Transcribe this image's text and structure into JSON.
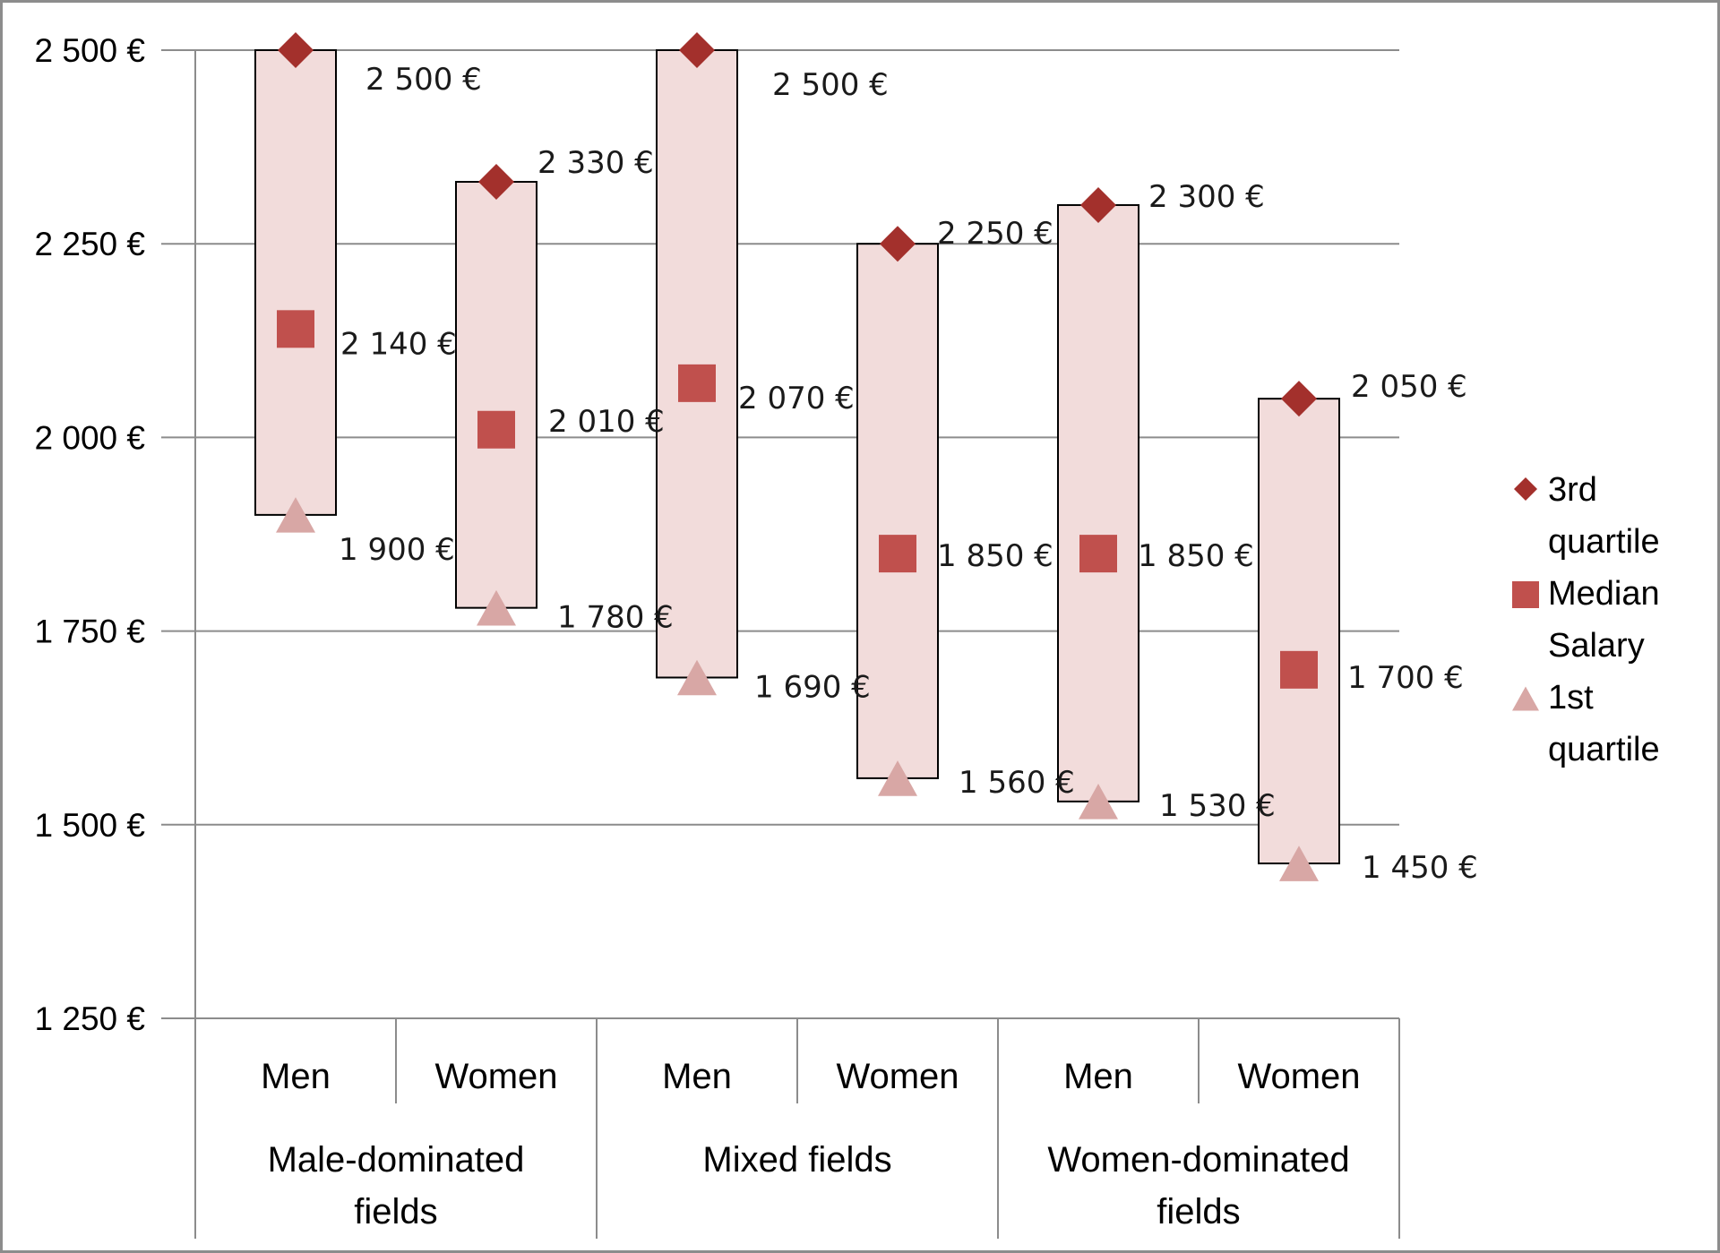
{
  "chart_data": {
    "type": "floating-bar",
    "title": "",
    "xlabel": "",
    "ylabel": "",
    "ylim": [
      1250,
      2500
    ],
    "yticks": [
      1250,
      1500,
      1750,
      2000,
      2250,
      2500
    ],
    "ytick_labels": [
      "1 250 €",
      "1 500 €",
      "1 750 €",
      "2 000 €",
      "2 250 €",
      "2 500 €"
    ],
    "gridlines": true,
    "legend_position": "right",
    "groups": [
      {
        "label": "Male-dominated fields",
        "categories": [
          "Men",
          "Women"
        ]
      },
      {
        "label": "Mixed fields",
        "categories": [
          "Men",
          "Women"
        ]
      },
      {
        "label": "Women-dominated fields",
        "categories": [
          "Men",
          "Women"
        ]
      }
    ],
    "categories": [
      "Men",
      "Women",
      "Men",
      "Women",
      "Men",
      "Women"
    ],
    "series": [
      {
        "name": "3rd quartile",
        "marker": "diamond",
        "color": "#a3302c",
        "values": [
          2500,
          2330,
          2500,
          2250,
          2300,
          2050
        ],
        "labels": [
          "2 500 €",
          "2 330 €",
          "2 500 €",
          "2 250 €",
          "2 300 €",
          "2 050 €"
        ]
      },
      {
        "name": "Median Salary",
        "marker": "square",
        "color": "#c0504d",
        "values": [
          2140,
          2010,
          2070,
          1850,
          1850,
          1700
        ],
        "labels": [
          "2 140 €",
          "2 010 €",
          "2 070 €",
          "1 850 €",
          "1 850 €",
          "1 700 €"
        ]
      },
      {
        "name": "1st quartile",
        "marker": "triangle",
        "color": "#d8a7a5",
        "values": [
          1900,
          1780,
          1690,
          1560,
          1530,
          1450
        ],
        "labels": [
          "1 900 €",
          "1 780 €",
          "1 690 €",
          "1 560 €",
          "1 530 €",
          "1 450 €"
        ]
      }
    ],
    "legend": [
      {
        "line1": "3rd",
        "line2": "quartile",
        "marker": "diamond",
        "color": "#a3302c"
      },
      {
        "line1": "Median",
        "line2": "Salary",
        "marker": "square",
        "color": "#c0504d"
      },
      {
        "line1": "1st",
        "line2": "quartile",
        "marker": "triangle",
        "color": "#d8a7a5"
      }
    ],
    "colors": {
      "bar_fill": "#f2dcdb",
      "bar_border": "#000000",
      "grid": "#8c8c8c"
    }
  }
}
